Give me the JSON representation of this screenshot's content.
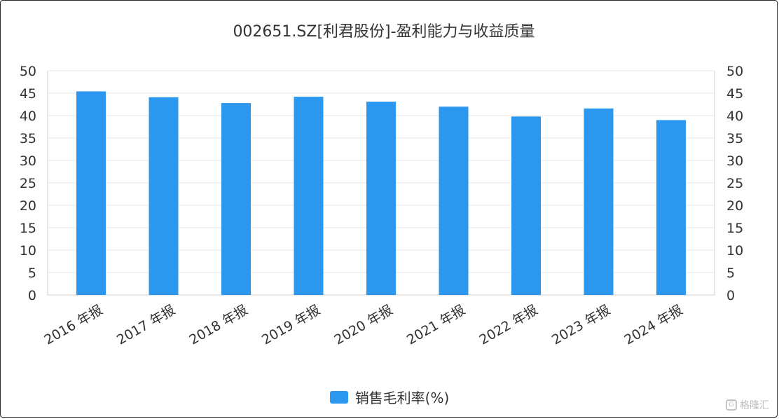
{
  "chart_data": {
    "type": "bar",
    "title": "002651.SZ[利君股份]-盈利能力与收益质量",
    "categories": [
      "2016 年报",
      "2017 年报",
      "2018 年报",
      "2019 年报",
      "2020 年报",
      "2021 年报",
      "2022 年报",
      "2023 年报",
      "2024 年报"
    ],
    "series": [
      {
        "name": "销售毛利率(%)",
        "values": [
          45.4,
          44.1,
          42.8,
          44.2,
          43.1,
          42.0,
          39.8,
          41.6,
          39.0
        ]
      }
    ],
    "ylim": [
      0,
      50
    ],
    "yticks": [
      0,
      5,
      10,
      15,
      20,
      25,
      30,
      35,
      40,
      45,
      50
    ],
    "right_axis_mirrored": true,
    "grid": "horizontal",
    "legend_position": "bottom-center",
    "xlabel": "",
    "ylabel": ""
  },
  "colors": {
    "bar": "#2b97ee",
    "grid": "#e9e9e9",
    "axis": "#d0d0d0",
    "tick_text": "#333333",
    "title_text": "#333333"
  },
  "watermark": {
    "text": "格隆汇",
    "icon": "glh-logo-icon"
  }
}
